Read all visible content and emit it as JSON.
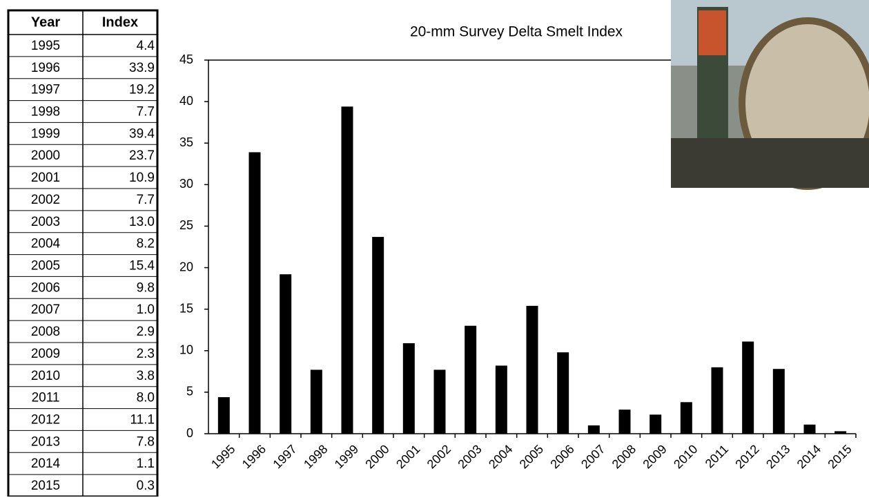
{
  "table": {
    "header": [
      "Year",
      "Index"
    ],
    "rows": [
      [
        "1995",
        "4.4"
      ],
      [
        "1996",
        "33.9"
      ],
      [
        "1997",
        "19.2"
      ],
      [
        "1998",
        "7.7"
      ],
      [
        "1999",
        "39.4"
      ],
      [
        "2000",
        "23.7"
      ],
      [
        "2001",
        "10.9"
      ],
      [
        "2002",
        "7.7"
      ],
      [
        "2003",
        "13.0"
      ],
      [
        "2004",
        "8.2"
      ],
      [
        "2005",
        "15.4"
      ],
      [
        "2006",
        "9.8"
      ],
      [
        "2007",
        "1.0"
      ],
      [
        "2008",
        "2.9"
      ],
      [
        "2009",
        "2.3"
      ],
      [
        "2010",
        "3.8"
      ],
      [
        "2011",
        "8.0"
      ],
      [
        "2012",
        "11.1"
      ],
      [
        "2013",
        "7.8"
      ],
      [
        "2014",
        "1.1"
      ],
      [
        "2015",
        "0.3"
      ]
    ]
  },
  "chart_data": {
    "type": "bar",
    "title": "20-mm Survey Delta Smelt Index",
    "categories": [
      "1995",
      "1996",
      "1997",
      "1998",
      "1999",
      "2000",
      "2001",
      "2002",
      "2003",
      "2004",
      "2005",
      "2006",
      "2007",
      "2008",
      "2009",
      "2010",
      "2011",
      "2012",
      "2013",
      "2014",
      "2015"
    ],
    "values": [
      4.4,
      33.9,
      19.2,
      7.7,
      39.4,
      23.7,
      10.9,
      7.7,
      13.0,
      8.2,
      15.4,
      9.8,
      1.0,
      2.9,
      2.3,
      3.8,
      8.0,
      11.1,
      7.8,
      1.1,
      0.3
    ],
    "color": "#000000",
    "ylim": [
      0,
      45
    ],
    "yticks": [
      0,
      5,
      10,
      15,
      20,
      25,
      30,
      35,
      40,
      45
    ],
    "grid": false
  }
}
